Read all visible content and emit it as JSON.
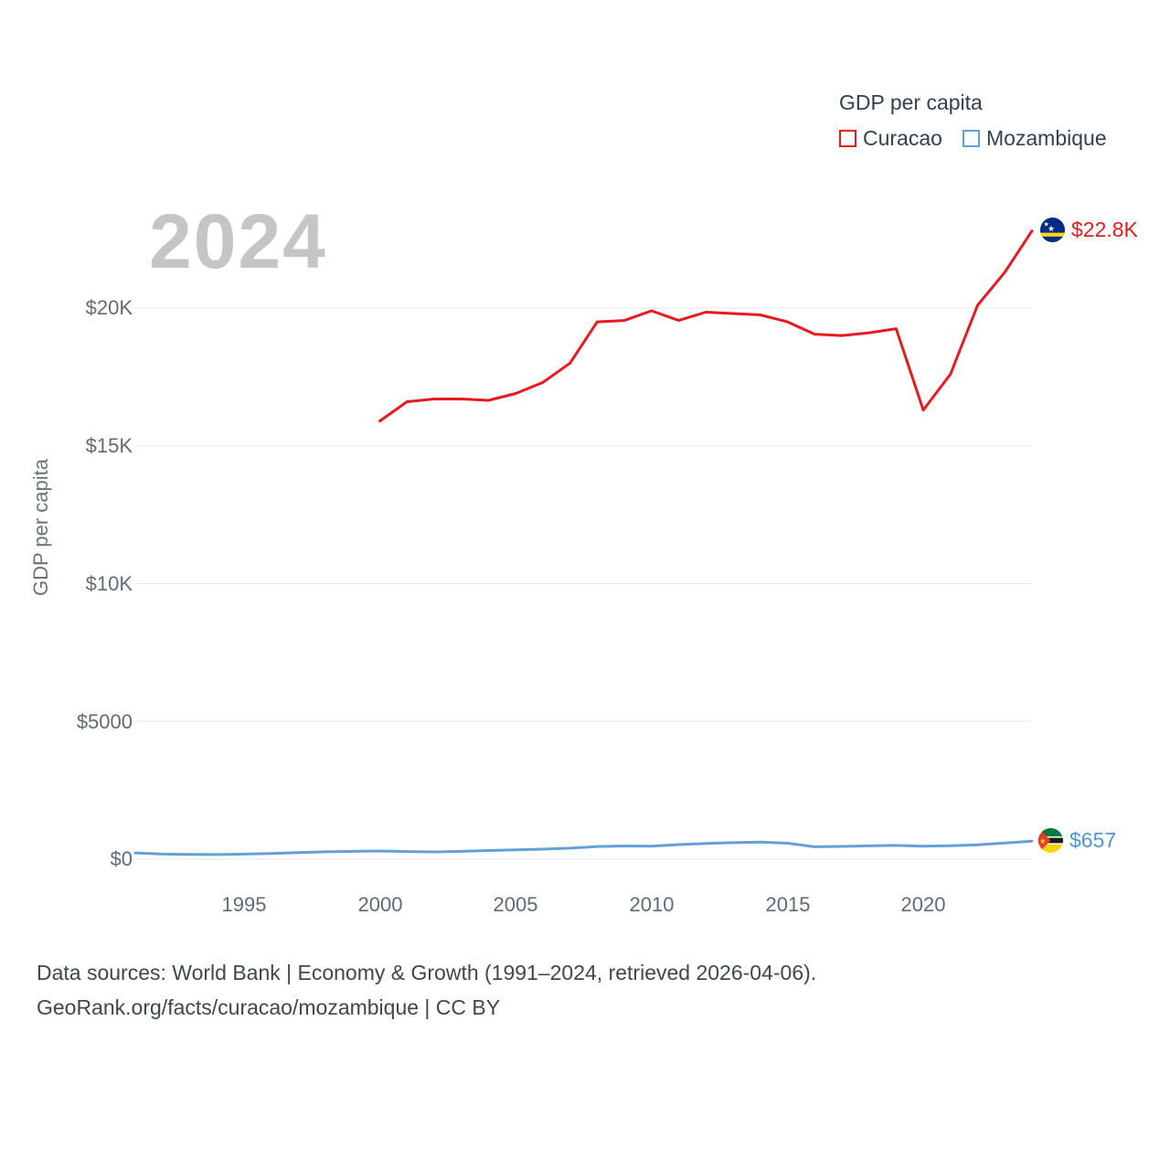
{
  "watermark": "2024",
  "legend": {
    "title": "GDP per capita",
    "items": [
      {
        "label": "Curacao",
        "color": "#e8191f"
      },
      {
        "label": "Mozambique",
        "color": "#64a0d8"
      }
    ]
  },
  "y_axis_title": "GDP per capita",
  "end_labels": {
    "curacao": {
      "value": "$22.8K",
      "color": "#e8191f",
      "flag": "curacao-flag"
    },
    "mozambique": {
      "value": "$657",
      "color": "#4f95d4",
      "flag": "mozambique-flag"
    }
  },
  "footer": {
    "line1": "Data sources: World Bank | Economy & Growth (1991–2024, retrieved 2026-04-06).",
    "line2": "GeoRank.org/facts/curacao/mozambique | CC BY"
  },
  "chart_data": {
    "type": "line",
    "title": "GDP per capita",
    "xlabel": "",
    "ylabel": "GDP per capita",
    "xlim": [
      1991,
      2024
    ],
    "ylim": [
      0,
      23500
    ],
    "grid": true,
    "legend_position": "top-right",
    "ytick_values": [
      0,
      5000,
      10000,
      15000,
      20000
    ],
    "ytick_labels": [
      "$0",
      "$5000",
      "$10K",
      "$15K",
      "$20K"
    ],
    "xtick_values": [
      1995,
      2000,
      2005,
      2010,
      2015,
      2020
    ],
    "xtick_labels": [
      "1995",
      "2000",
      "2005",
      "2010",
      "2015",
      "2020"
    ],
    "series": [
      {
        "name": "Curacao",
        "color": "#e8191f",
        "x": [
          2000,
          2001,
          2002,
          2003,
          2004,
          2005,
          2006,
          2007,
          2008,
          2009,
          2010,
          2011,
          2012,
          2013,
          2014,
          2015,
          2016,
          2017,
          2018,
          2019,
          2020,
          2021,
          2022,
          2023,
          2024
        ],
        "values": [
          15900,
          16600,
          16700,
          16700,
          16650,
          16900,
          17300,
          18000,
          19500,
          19550,
          19900,
          19550,
          19850,
          19800,
          19750,
          19500,
          19050,
          19000,
          19100,
          19250,
          16300,
          17600,
          20100,
          21300,
          22800
        ]
      },
      {
        "name": "Mozambique",
        "color": "#64a0d8",
        "x": [
          1991,
          1992,
          1993,
          1994,
          1995,
          1996,
          1997,
          1998,
          1999,
          2000,
          2001,
          2002,
          2003,
          2004,
          2005,
          2006,
          2007,
          2008,
          2009,
          2010,
          2011,
          2012,
          2013,
          2014,
          2015,
          2016,
          2017,
          2018,
          2019,
          2020,
          2021,
          2022,
          2023,
          2024
        ],
        "values": [
          230,
          185,
          175,
          170,
          185,
          210,
          240,
          270,
          285,
          300,
          280,
          265,
          285,
          315,
          340,
          365,
          400,
          460,
          480,
          470,
          530,
          570,
          600,
          620,
          580,
          450,
          465,
          485,
          500,
          470,
          490,
          525,
          590,
          657
        ]
      }
    ]
  }
}
